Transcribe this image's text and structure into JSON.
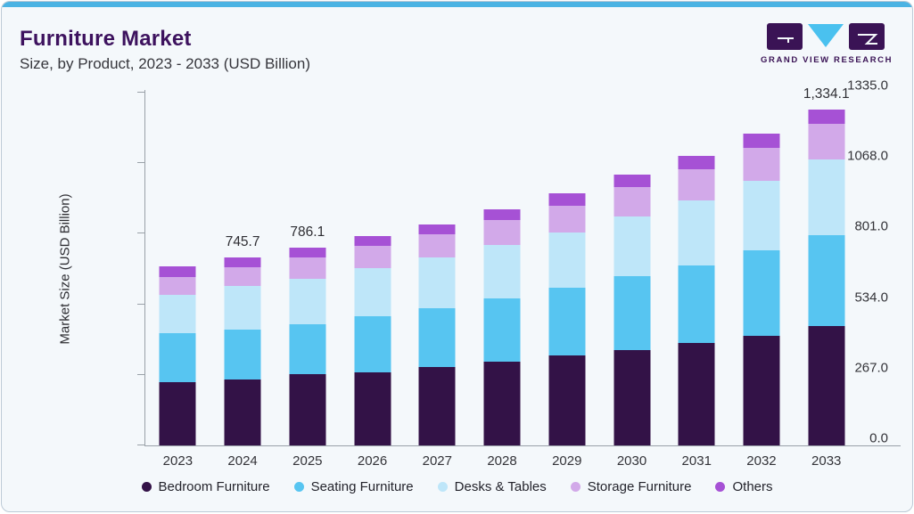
{
  "header": {
    "title": "Furniture Market",
    "subtitle": "Size, by Product, 2023 - 2033 (USD Billion)"
  },
  "logo": {
    "text": "GRAND VIEW RESEARCH",
    "dark_color": "#3a1355",
    "accent_color": "#4ac1ef"
  },
  "theme": {
    "card_background": "#f4f8fb",
    "top_strip_color": "#4bb3e3",
    "title_color": "#3d125e",
    "axis_color": "#9aa1a8"
  },
  "chart_data": {
    "type": "bar",
    "stacked": true,
    "title": "Furniture Market Size, by Product, 2023 - 2033 (USD Billion)",
    "xlabel": "",
    "ylabel": "Market Size (USD Billion)",
    "ylim": [
      0,
      1335
    ],
    "yticks": [
      0.0,
      267.0,
      534.0,
      801.0,
      1068.0,
      1335.0
    ],
    "ytick_labels": [
      "0.0",
      "267.0",
      "534.0",
      "801.0",
      "1068.0",
      "1335.0"
    ],
    "grid": false,
    "legend_position": "bottom",
    "categories": [
      "2023",
      "2024",
      "2025",
      "2026",
      "2027",
      "2028",
      "2029",
      "2030",
      "2031",
      "2032",
      "2033"
    ],
    "series": [
      {
        "name": "Bedroom Furniture",
        "color": "#331247",
        "values": [
          251.3,
          263.2,
          281.6,
          289.5,
          310.1,
          332.8,
          356.5,
          379.2,
          407.5,
          436.9,
          473.8
        ]
      },
      {
        "name": "Seating Furniture",
        "color": "#57c5f1",
        "values": [
          193.6,
          197.3,
          199.6,
          224.0,
          236.7,
          251.3,
          269.0,
          292.5,
          308.5,
          339.1,
          363.1
        ]
      },
      {
        "name": "Desks & Tables",
        "color": "#bee6f9",
        "values": [
          154.3,
          171.1,
          181.7,
          192.5,
          200.2,
          212.4,
          221.6,
          238.1,
          258.5,
          275.3,
          298.1
        ]
      },
      {
        "name": "Storage Furniture",
        "color": "#d2a9e9",
        "values": [
          70.8,
          76.9,
          82.4,
          86.8,
          91.3,
          98.1,
          106.2,
          115.5,
          121.5,
          130.4,
          141.4
        ]
      },
      {
        "name": "Others",
        "color": "#a651d5",
        "values": [
          40.4,
          37.2,
          40.8,
          39.2,
          39.7,
          43.5,
          48.5,
          50.8,
          54.6,
          57.4,
          57.7
        ]
      }
    ],
    "totals": [
      710.4,
      745.7,
      786.1,
      832.0,
      878.0,
      938.1,
      1001.8,
      1076.1,
      1150.6,
      1239.1,
      1334.1
    ],
    "bar_value_labels": [
      "",
      "745.7",
      "786.1",
      "",
      "",
      "",
      "",
      "",
      "",
      "",
      "1,334.1"
    ]
  }
}
